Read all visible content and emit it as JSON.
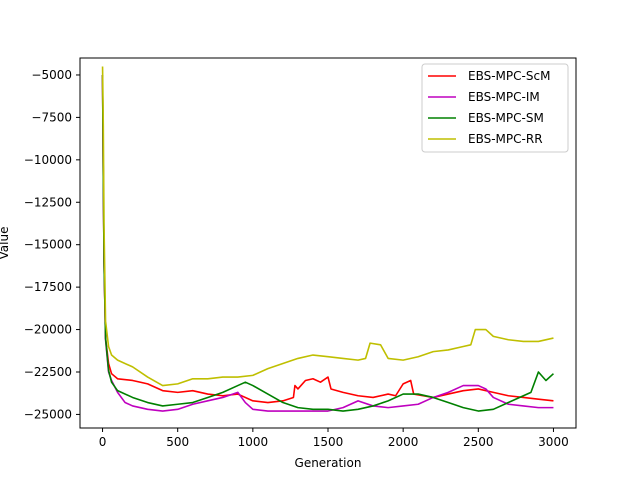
{
  "chart_data": {
    "type": "line",
    "title": "",
    "xlabel": "Generation",
    "ylabel": "Value",
    "xlim": [
      -150,
      3150
    ],
    "ylim": [
      -25800,
      -4000
    ],
    "xticks": [
      0,
      500,
      1000,
      1500,
      2000,
      2500,
      3000
    ],
    "yticks": [
      -5000,
      -7500,
      -10000,
      -12500,
      -15000,
      -17500,
      -20000,
      -22500,
      -25000
    ],
    "grid": false,
    "legend_position": "top-right",
    "series": [
      {
        "name": "EBS-MPC-ScM",
        "color": "#ff0000",
        "points": [
          [
            0,
            -5000
          ],
          [
            5,
            -11000
          ],
          [
            10,
            -16000
          ],
          [
            20,
            -20500
          ],
          [
            40,
            -22000
          ],
          [
            60,
            -22600
          ],
          [
            100,
            -22900
          ],
          [
            200,
            -23000
          ],
          [
            300,
            -23200
          ],
          [
            400,
            -23600
          ],
          [
            500,
            -23700
          ],
          [
            600,
            -23600
          ],
          [
            700,
            -23800
          ],
          [
            800,
            -23900
          ],
          [
            900,
            -23800
          ],
          [
            1000,
            -24200
          ],
          [
            1100,
            -24300
          ],
          [
            1200,
            -24200
          ],
          [
            1270,
            -24000
          ],
          [
            1280,
            -23300
          ],
          [
            1300,
            -23500
          ],
          [
            1350,
            -23000
          ],
          [
            1400,
            -22900
          ],
          [
            1450,
            -23100
          ],
          [
            1500,
            -22800
          ],
          [
            1520,
            -23500
          ],
          [
            1600,
            -23700
          ],
          [
            1700,
            -23900
          ],
          [
            1800,
            -24000
          ],
          [
            1900,
            -23800
          ],
          [
            1950,
            -23900
          ],
          [
            2000,
            -23200
          ],
          [
            2050,
            -23000
          ],
          [
            2070,
            -23800
          ],
          [
            2200,
            -24000
          ],
          [
            2300,
            -23800
          ],
          [
            2400,
            -23600
          ],
          [
            2500,
            -23500
          ],
          [
            2600,
            -23700
          ],
          [
            2700,
            -23900
          ],
          [
            2800,
            -24000
          ],
          [
            2900,
            -24100
          ],
          [
            3000,
            -24200
          ]
        ]
      },
      {
        "name": "EBS-MPC-IM",
        "color": "#bf00bf",
        "points": [
          [
            0,
            -5000
          ],
          [
            5,
            -11000
          ],
          [
            10,
            -16000
          ],
          [
            20,
            -20600
          ],
          [
            40,
            -22500
          ],
          [
            60,
            -23000
          ],
          [
            100,
            -23700
          ],
          [
            150,
            -24300
          ],
          [
            200,
            -24500
          ],
          [
            300,
            -24700
          ],
          [
            400,
            -24800
          ],
          [
            500,
            -24700
          ],
          [
            600,
            -24400
          ],
          [
            700,
            -24200
          ],
          [
            800,
            -24000
          ],
          [
            900,
            -23700
          ],
          [
            950,
            -24300
          ],
          [
            1000,
            -24700
          ],
          [
            1100,
            -24800
          ],
          [
            1200,
            -24800
          ],
          [
            1300,
            -24800
          ],
          [
            1400,
            -24800
          ],
          [
            1500,
            -24800
          ],
          [
            1600,
            -24600
          ],
          [
            1700,
            -24200
          ],
          [
            1800,
            -24500
          ],
          [
            1900,
            -24600
          ],
          [
            2000,
            -24500
          ],
          [
            2100,
            -24400
          ],
          [
            2200,
            -24000
          ],
          [
            2300,
            -23700
          ],
          [
            2400,
            -23300
          ],
          [
            2500,
            -23300
          ],
          [
            2550,
            -23500
          ],
          [
            2600,
            -24000
          ],
          [
            2700,
            -24400
          ],
          [
            2800,
            -24500
          ],
          [
            2900,
            -24600
          ],
          [
            3000,
            -24600
          ]
        ]
      },
      {
        "name": "EBS-MPC-SM",
        "color": "#008000",
        "points": [
          [
            0,
            -5000
          ],
          [
            5,
            -11000
          ],
          [
            10,
            -16000
          ],
          [
            20,
            -20500
          ],
          [
            40,
            -22400
          ],
          [
            60,
            -23100
          ],
          [
            100,
            -23600
          ],
          [
            200,
            -24000
          ],
          [
            300,
            -24300
          ],
          [
            400,
            -24500
          ],
          [
            500,
            -24400
          ],
          [
            600,
            -24300
          ],
          [
            700,
            -24000
          ],
          [
            800,
            -23700
          ],
          [
            900,
            -23300
          ],
          [
            950,
            -23100
          ],
          [
            1000,
            -23300
          ],
          [
            1100,
            -23800
          ],
          [
            1200,
            -24300
          ],
          [
            1300,
            -24600
          ],
          [
            1400,
            -24700
          ],
          [
            1500,
            -24700
          ],
          [
            1600,
            -24800
          ],
          [
            1700,
            -24700
          ],
          [
            1800,
            -24500
          ],
          [
            1900,
            -24200
          ],
          [
            2000,
            -23800
          ],
          [
            2100,
            -23800
          ],
          [
            2200,
            -24000
          ],
          [
            2300,
            -24300
          ],
          [
            2400,
            -24600
          ],
          [
            2500,
            -24800
          ],
          [
            2600,
            -24700
          ],
          [
            2700,
            -24300
          ],
          [
            2800,
            -23900
          ],
          [
            2850,
            -23700
          ],
          [
            2900,
            -22500
          ],
          [
            2950,
            -23000
          ],
          [
            3000,
            -22600
          ]
        ]
      },
      {
        "name": "EBS-MPC-RR",
        "color": "#bfbf00",
        "points": [
          [
            0,
            -4500
          ],
          [
            5,
            -8000
          ],
          [
            10,
            -14000
          ],
          [
            20,
            -19500
          ],
          [
            40,
            -21000
          ],
          [
            60,
            -21500
          ],
          [
            100,
            -21800
          ],
          [
            200,
            -22200
          ],
          [
            300,
            -22800
          ],
          [
            400,
            -23300
          ],
          [
            500,
            -23200
          ],
          [
            600,
            -22900
          ],
          [
            700,
            -22900
          ],
          [
            800,
            -22800
          ],
          [
            900,
            -22800
          ],
          [
            1000,
            -22700
          ],
          [
            1100,
            -22300
          ],
          [
            1200,
            -22000
          ],
          [
            1300,
            -21700
          ],
          [
            1400,
            -21500
          ],
          [
            1500,
            -21600
          ],
          [
            1600,
            -21700
          ],
          [
            1700,
            -21800
          ],
          [
            1750,
            -21700
          ],
          [
            1780,
            -20800
          ],
          [
            1850,
            -20900
          ],
          [
            1900,
            -21700
          ],
          [
            2000,
            -21800
          ],
          [
            2100,
            -21600
          ],
          [
            2200,
            -21300
          ],
          [
            2300,
            -21200
          ],
          [
            2400,
            -21000
          ],
          [
            2450,
            -20900
          ],
          [
            2480,
            -20000
          ],
          [
            2550,
            -20000
          ],
          [
            2600,
            -20400
          ],
          [
            2700,
            -20600
          ],
          [
            2800,
            -20700
          ],
          [
            2900,
            -20700
          ],
          [
            3000,
            -20500
          ]
        ]
      }
    ]
  }
}
